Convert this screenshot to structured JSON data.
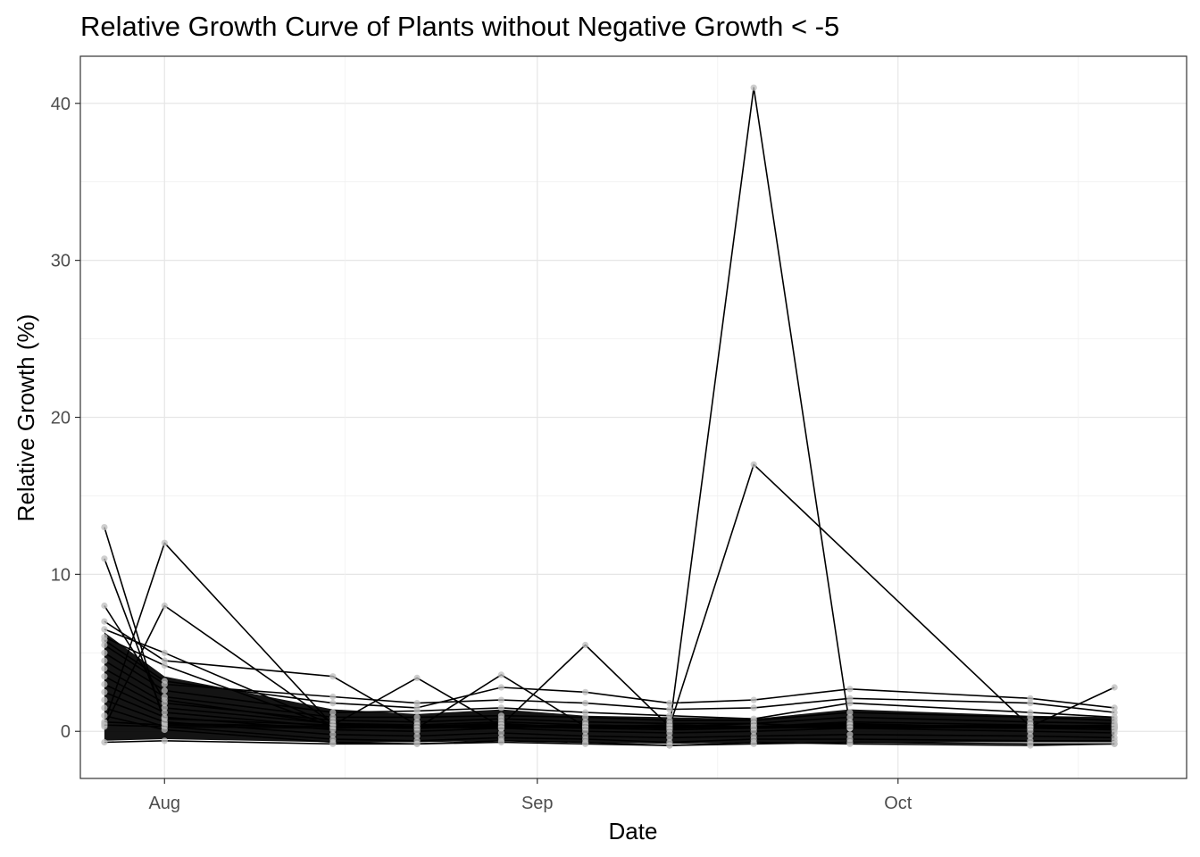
{
  "chart_data": {
    "type": "line",
    "title": "Relative Growth Curve of Plants without Negative Growth < -5",
    "xlabel": "Date",
    "ylabel": "Relative Growth (%)",
    "x_ticks": [
      "Aug",
      "Sep",
      "Oct"
    ],
    "x_tick_dates": [
      "2023-08-01",
      "2023-09-01",
      "2023-10-01"
    ],
    "xlim": [
      "2023-07-25",
      "2023-10-25"
    ],
    "ylim": [
      -3,
      43
    ],
    "y_ticks": [
      0,
      10,
      20,
      30,
      40
    ],
    "grid": true,
    "legend": "none",
    "line_color": "#000000",
    "point_color": "#bdbdbd",
    "dates": [
      "2023-07-27",
      "2023-08-01",
      "2023-08-15",
      "2023-08-22",
      "2023-08-29",
      "2023-09-05",
      "2023-09-12",
      "2023-09-19",
      "2023-09-27",
      "2023-10-12",
      "2023-10-19"
    ],
    "series": [
      {
        "values": [
          13.0,
          0.5,
          0.3,
          0.2,
          0.4,
          0.3,
          0.2,
          0.3,
          0.4,
          0.3,
          0.2
        ]
      },
      {
        "values": [
          11.0,
          0.8,
          0.4,
          0.3,
          0.5,
          0.2,
          0.4,
          0.2,
          0.3,
          0.2,
          0.3
        ]
      },
      {
        "values": [
          0.5,
          12.0,
          0.4,
          0.3,
          0.2,
          0.4,
          0.3,
          0.5,
          0.2,
          0.3,
          0.4
        ]
      },
      {
        "values": [
          0.3,
          8.0,
          0.5,
          0.2,
          0.3,
          0.2,
          0.4,
          0.3,
          0.5,
          0.2,
          0.3
        ]
      },
      {
        "values": [
          0.6,
          0.4,
          0.3,
          0.2,
          0.4,
          0.3,
          0.2,
          41.0,
          0.3,
          0.2,
          0.4
        ]
      },
      {
        "values": [
          0.4,
          0.3,
          0.2,
          0.3,
          0.2,
          0.4,
          0.3,
          17.0,
          null,
          0.3,
          0.2
        ]
      },
      {
        "values": [
          8.0,
          2.0,
          0.5,
          0.3,
          0.4,
          5.5,
          0.3,
          0.2,
          0.3,
          0.2,
          0.3
        ]
      },
      {
        "values": [
          7.0,
          4.5,
          3.5,
          0.4,
          0.3,
          0.2,
          0.4,
          0.3,
          0.2,
          0.3,
          2.8
        ]
      },
      {
        "values": [
          6.5,
          5.0,
          0.4,
          3.4,
          0.3,
          0.4,
          0.2,
          0.3,
          0.4,
          0.2,
          0.3
        ]
      },
      {
        "values": [
          6.0,
          4.2,
          0.3,
          0.2,
          3.6,
          0.3,
          0.4,
          0.2,
          0.3,
          0.4,
          0.2
        ]
      },
      {
        "values": [
          5.8,
          3.2,
          1.8,
          1.5,
          2.8,
          2.5,
          1.8,
          2.0,
          2.7,
          2.1,
          1.5
        ]
      },
      {
        "values": [
          5.5,
          3.0,
          2.2,
          1.8,
          2.0,
          1.8,
          1.4,
          1.5,
          2.1,
          1.8,
          1.2
        ]
      },
      {
        "values": [
          5.0,
          2.6,
          1.2,
          1.3,
          1.5,
          1.2,
          1.0,
          0.8,
          1.8,
          1.2,
          0.9
        ]
      },
      {
        "values": [
          4.5,
          2.2,
          0.9,
          0.9,
          1.0,
          0.9,
          0.7,
          0.7,
          1.2,
          0.9,
          0.7
        ]
      },
      {
        "values": [
          4.0,
          1.8,
          0.7,
          0.6,
          0.8,
          0.6,
          0.5,
          0.5,
          0.9,
          0.6,
          0.5
        ]
      },
      {
        "values": [
          3.5,
          1.5,
          0.5,
          0.4,
          0.6,
          0.4,
          0.3,
          0.3,
          0.6,
          0.4,
          0.3
        ]
      },
      {
        "values": [
          3.0,
          1.2,
          0.3,
          0.2,
          0.4,
          0.2,
          0.1,
          0.2,
          0.4,
          0.2,
          0.1
        ]
      },
      {
        "values": [
          2.5,
          0.9,
          0.1,
          0.0,
          0.2,
          0.0,
          -0.1,
          0.0,
          0.2,
          0.0,
          -0.1
        ]
      },
      {
        "values": [
          2.0,
          0.6,
          -0.2,
          -0.3,
          -0.1,
          -0.3,
          -0.4,
          -0.3,
          -0.2,
          -0.3,
          -0.4
        ]
      },
      {
        "values": [
          1.5,
          0.3,
          -0.5,
          -0.6,
          -0.4,
          -0.5,
          -0.7,
          -0.5,
          -0.5,
          -0.6,
          -0.6
        ]
      },
      {
        "values": [
          1.0,
          0.1,
          -0.7,
          -0.8,
          -0.6,
          -0.7,
          -0.9,
          -0.7,
          -0.8,
          -0.9,
          -0.8
        ]
      },
      {
        "values": [
          -0.7,
          -0.6,
          -0.8,
          -0.8,
          -0.7,
          -0.8,
          -0.9,
          -0.8,
          -0.7,
          -0.8,
          -0.8
        ]
      }
    ]
  }
}
